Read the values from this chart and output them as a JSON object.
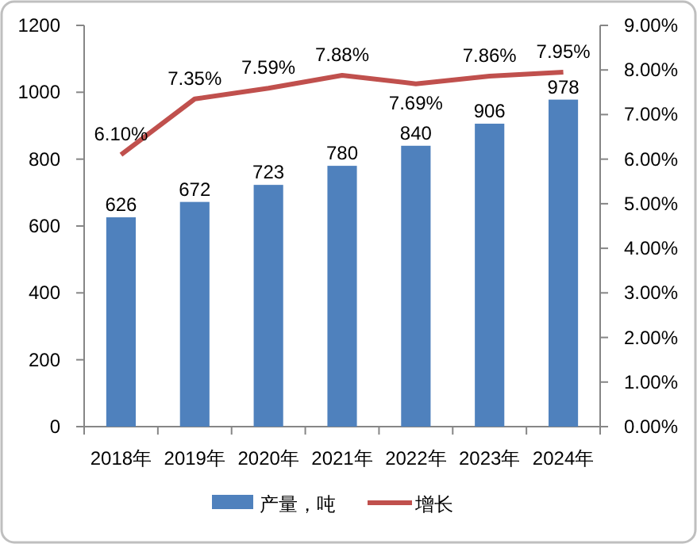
{
  "chart_data": {
    "type": "bar",
    "categories": [
      "2018年",
      "2019年",
      "2020年",
      "2021年",
      "2022年",
      "2023年",
      "2024年"
    ],
    "series": [
      {
        "name": "产量，吨",
        "color": "#4f81bd",
        "values": [
          626,
          672,
          723,
          780,
          840,
          906,
          978
        ],
        "value_labels": [
          "626",
          "672",
          "723",
          "780",
          "840",
          "906",
          "978"
        ]
      },
      {
        "name": "增长",
        "type": "line",
        "axis": "y2",
        "color": "#c0504d",
        "values": [
          6.1,
          7.35,
          7.59,
          7.88,
          7.69,
          7.86,
          7.95
        ],
        "value_labels": [
          "6.10%",
          "7.35%",
          "7.59%",
          "7.88%",
          "7.69%",
          "7.86%",
          "7.95%"
        ]
      }
    ],
    "ylim": [
      0,
      1200
    ],
    "yticks": [
      0,
      200,
      400,
      600,
      800,
      1000,
      1200
    ],
    "y2lim": [
      0,
      9
    ],
    "y2ticks": [
      {
        "value": 0,
        "label": "0.00%"
      },
      {
        "value": 1,
        "label": "1.00%"
      },
      {
        "value": 2,
        "label": "2.00%"
      },
      {
        "value": 3,
        "label": "3.00%"
      },
      {
        "value": 4,
        "label": "4.00%"
      },
      {
        "value": 5,
        "label": "5.00%"
      },
      {
        "value": 6,
        "label": "6.00%"
      },
      {
        "value": 7,
        "label": "7.00%"
      },
      {
        "value": 8,
        "label": "8.00%"
      },
      {
        "value": 9,
        "label": "9.00%"
      }
    ],
    "grid": false,
    "legend": "bottom",
    "marker": "none",
    "line_style": "solid"
  }
}
